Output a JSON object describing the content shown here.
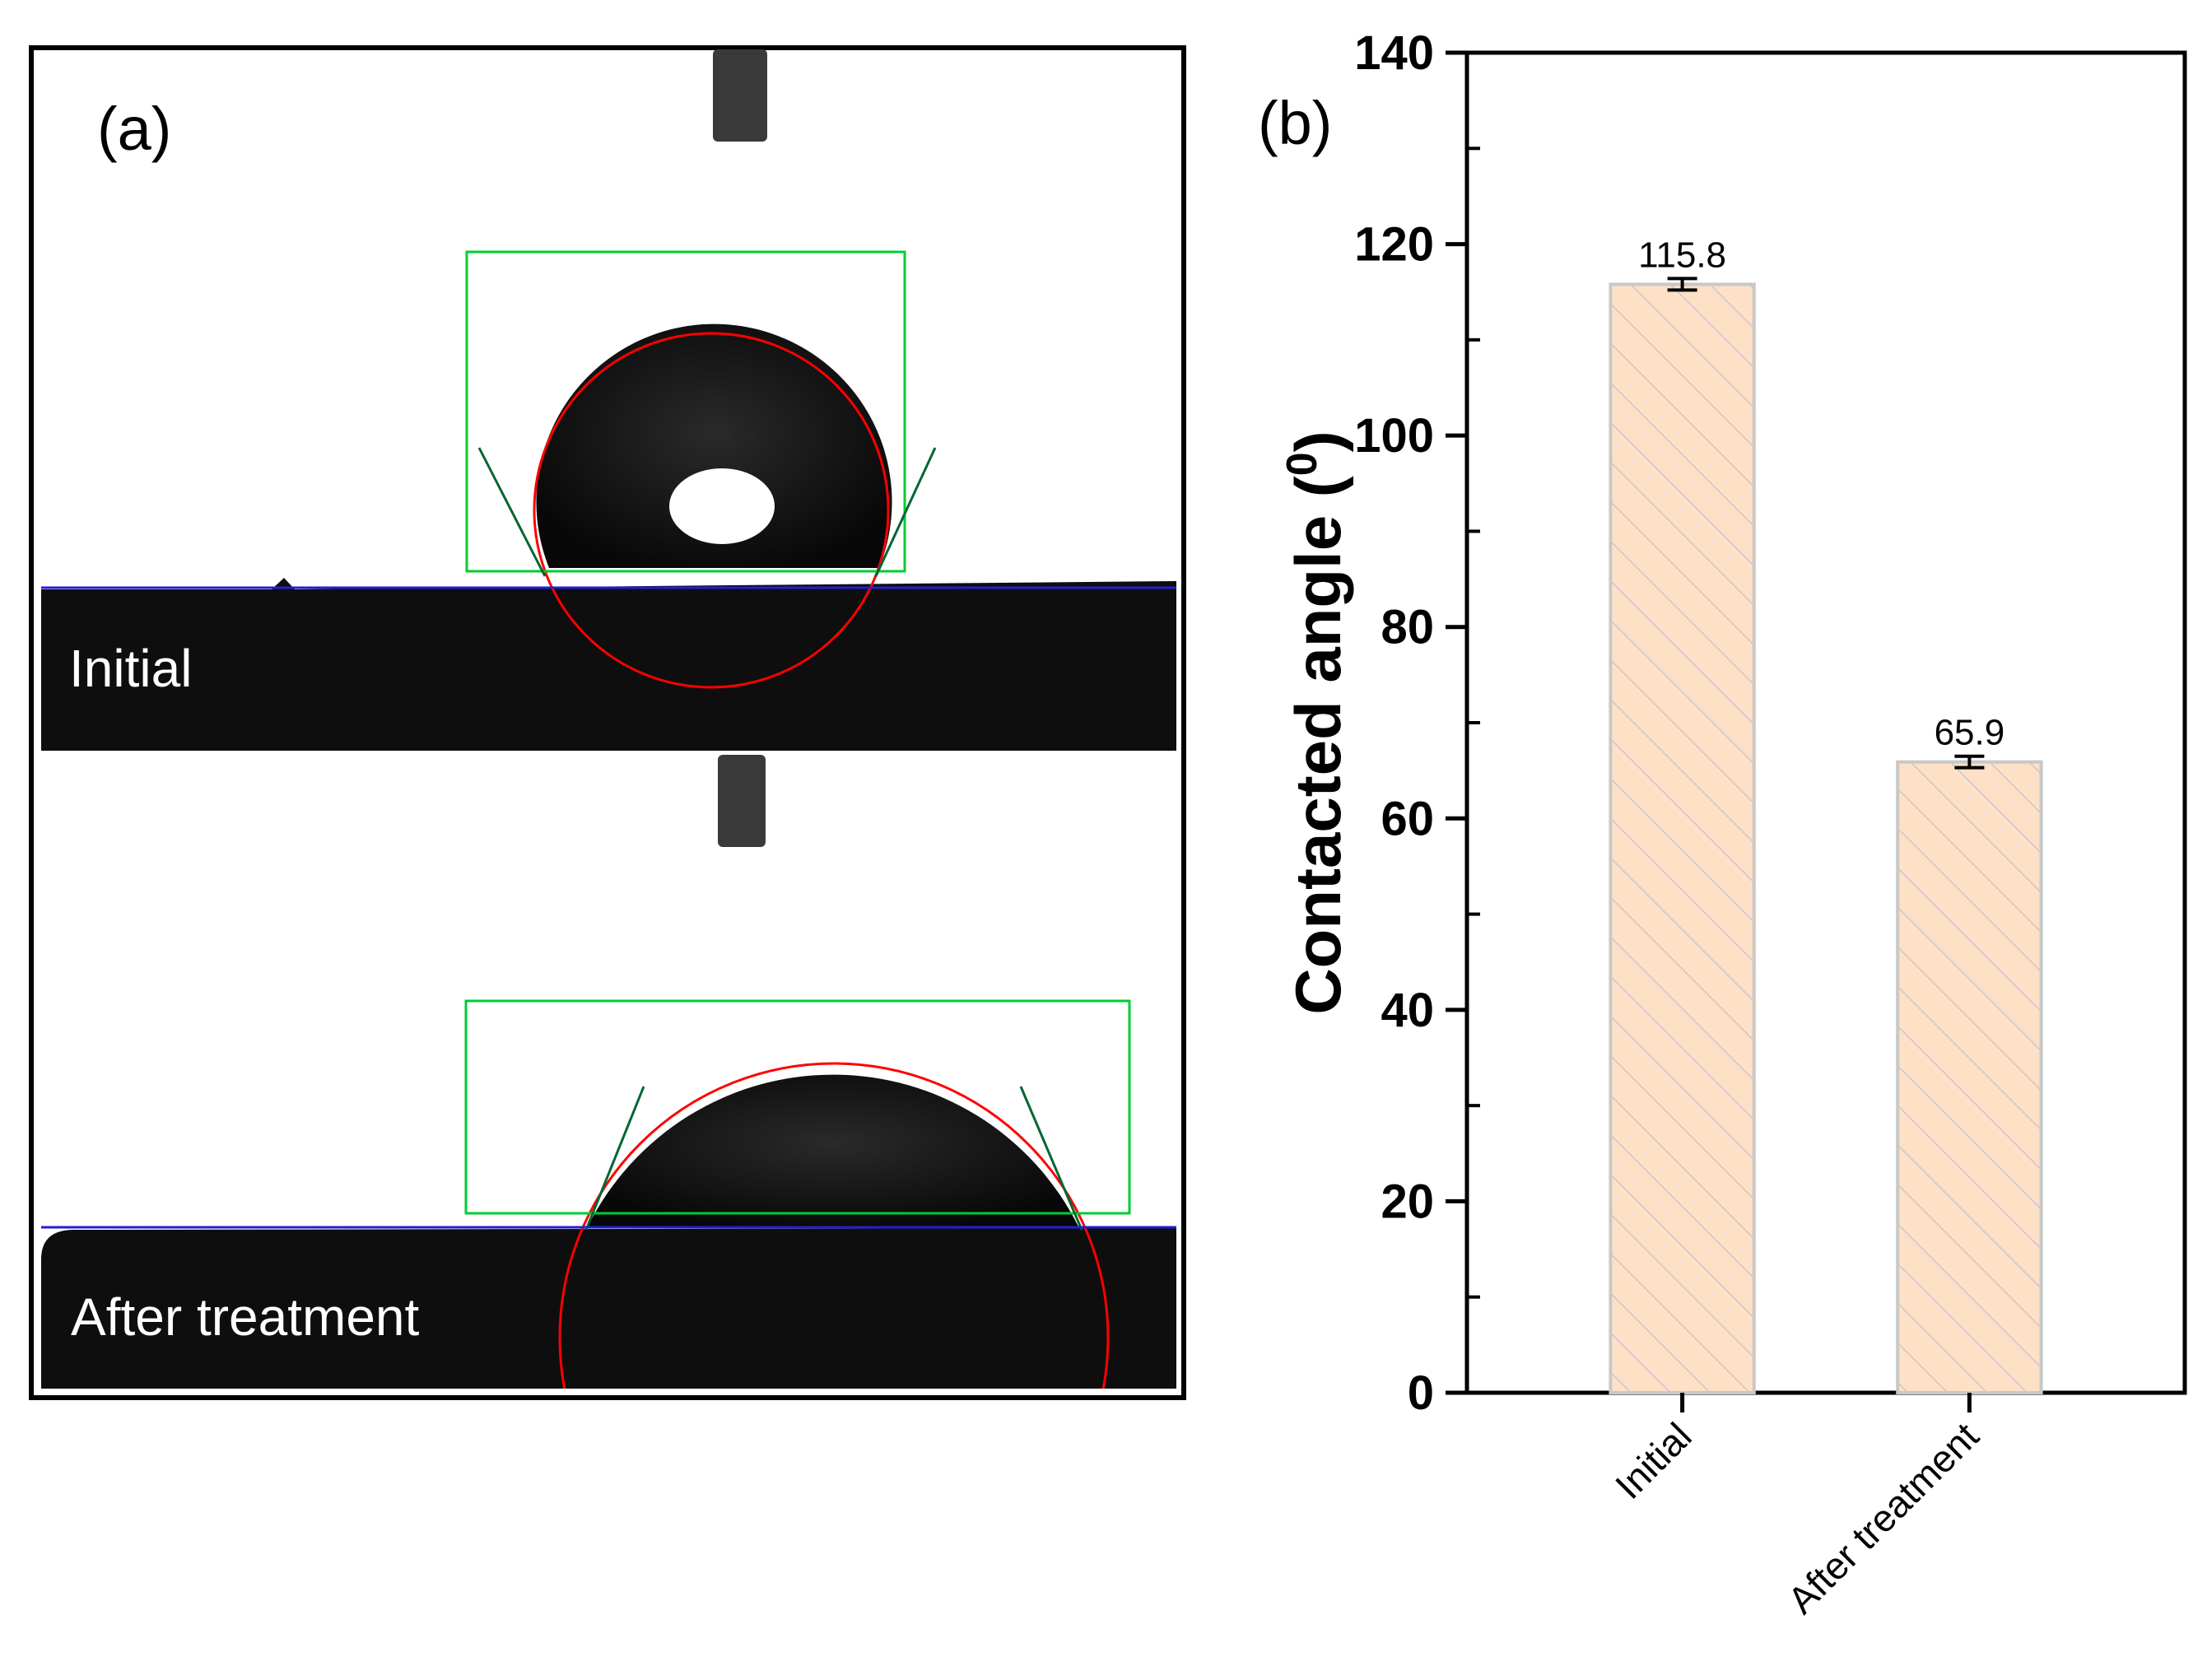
{
  "panel_a": {
    "letter": "(a)",
    "top_label": "Initial",
    "bottom_label": "After treatment"
  },
  "panel_b": {
    "letter": "(b)"
  },
  "colors": {
    "bar_fill": "#fde0c5",
    "bar_hatch": "#b8b8d8",
    "bar_edge": "#c8c8c8",
    "fit_circle": "#ff0000",
    "roi_box": "#00cc33",
    "baseline": "#2020d0",
    "tangent": "#006633"
  },
  "chart_data": {
    "type": "bar",
    "categories": [
      "Initial",
      "After treatment"
    ],
    "values": [
      115.8,
      65.9
    ],
    "value_labels": [
      "115.8",
      "65.9"
    ],
    "errors": [
      0.6,
      0.6
    ],
    "title": "",
    "xlabel": "",
    "ylabel_main": "Contacted angle (",
    "ylabel_sup": "0",
    "ylabel_end": ")",
    "ylim": [
      0,
      140
    ],
    "yticks": [
      0,
      20,
      40,
      60,
      80,
      100,
      120,
      140
    ],
    "ytick_labels": [
      "0",
      "20",
      "40",
      "60",
      "80",
      "100",
      "120",
      "140"
    ],
    "grid": false,
    "legend": "none"
  }
}
